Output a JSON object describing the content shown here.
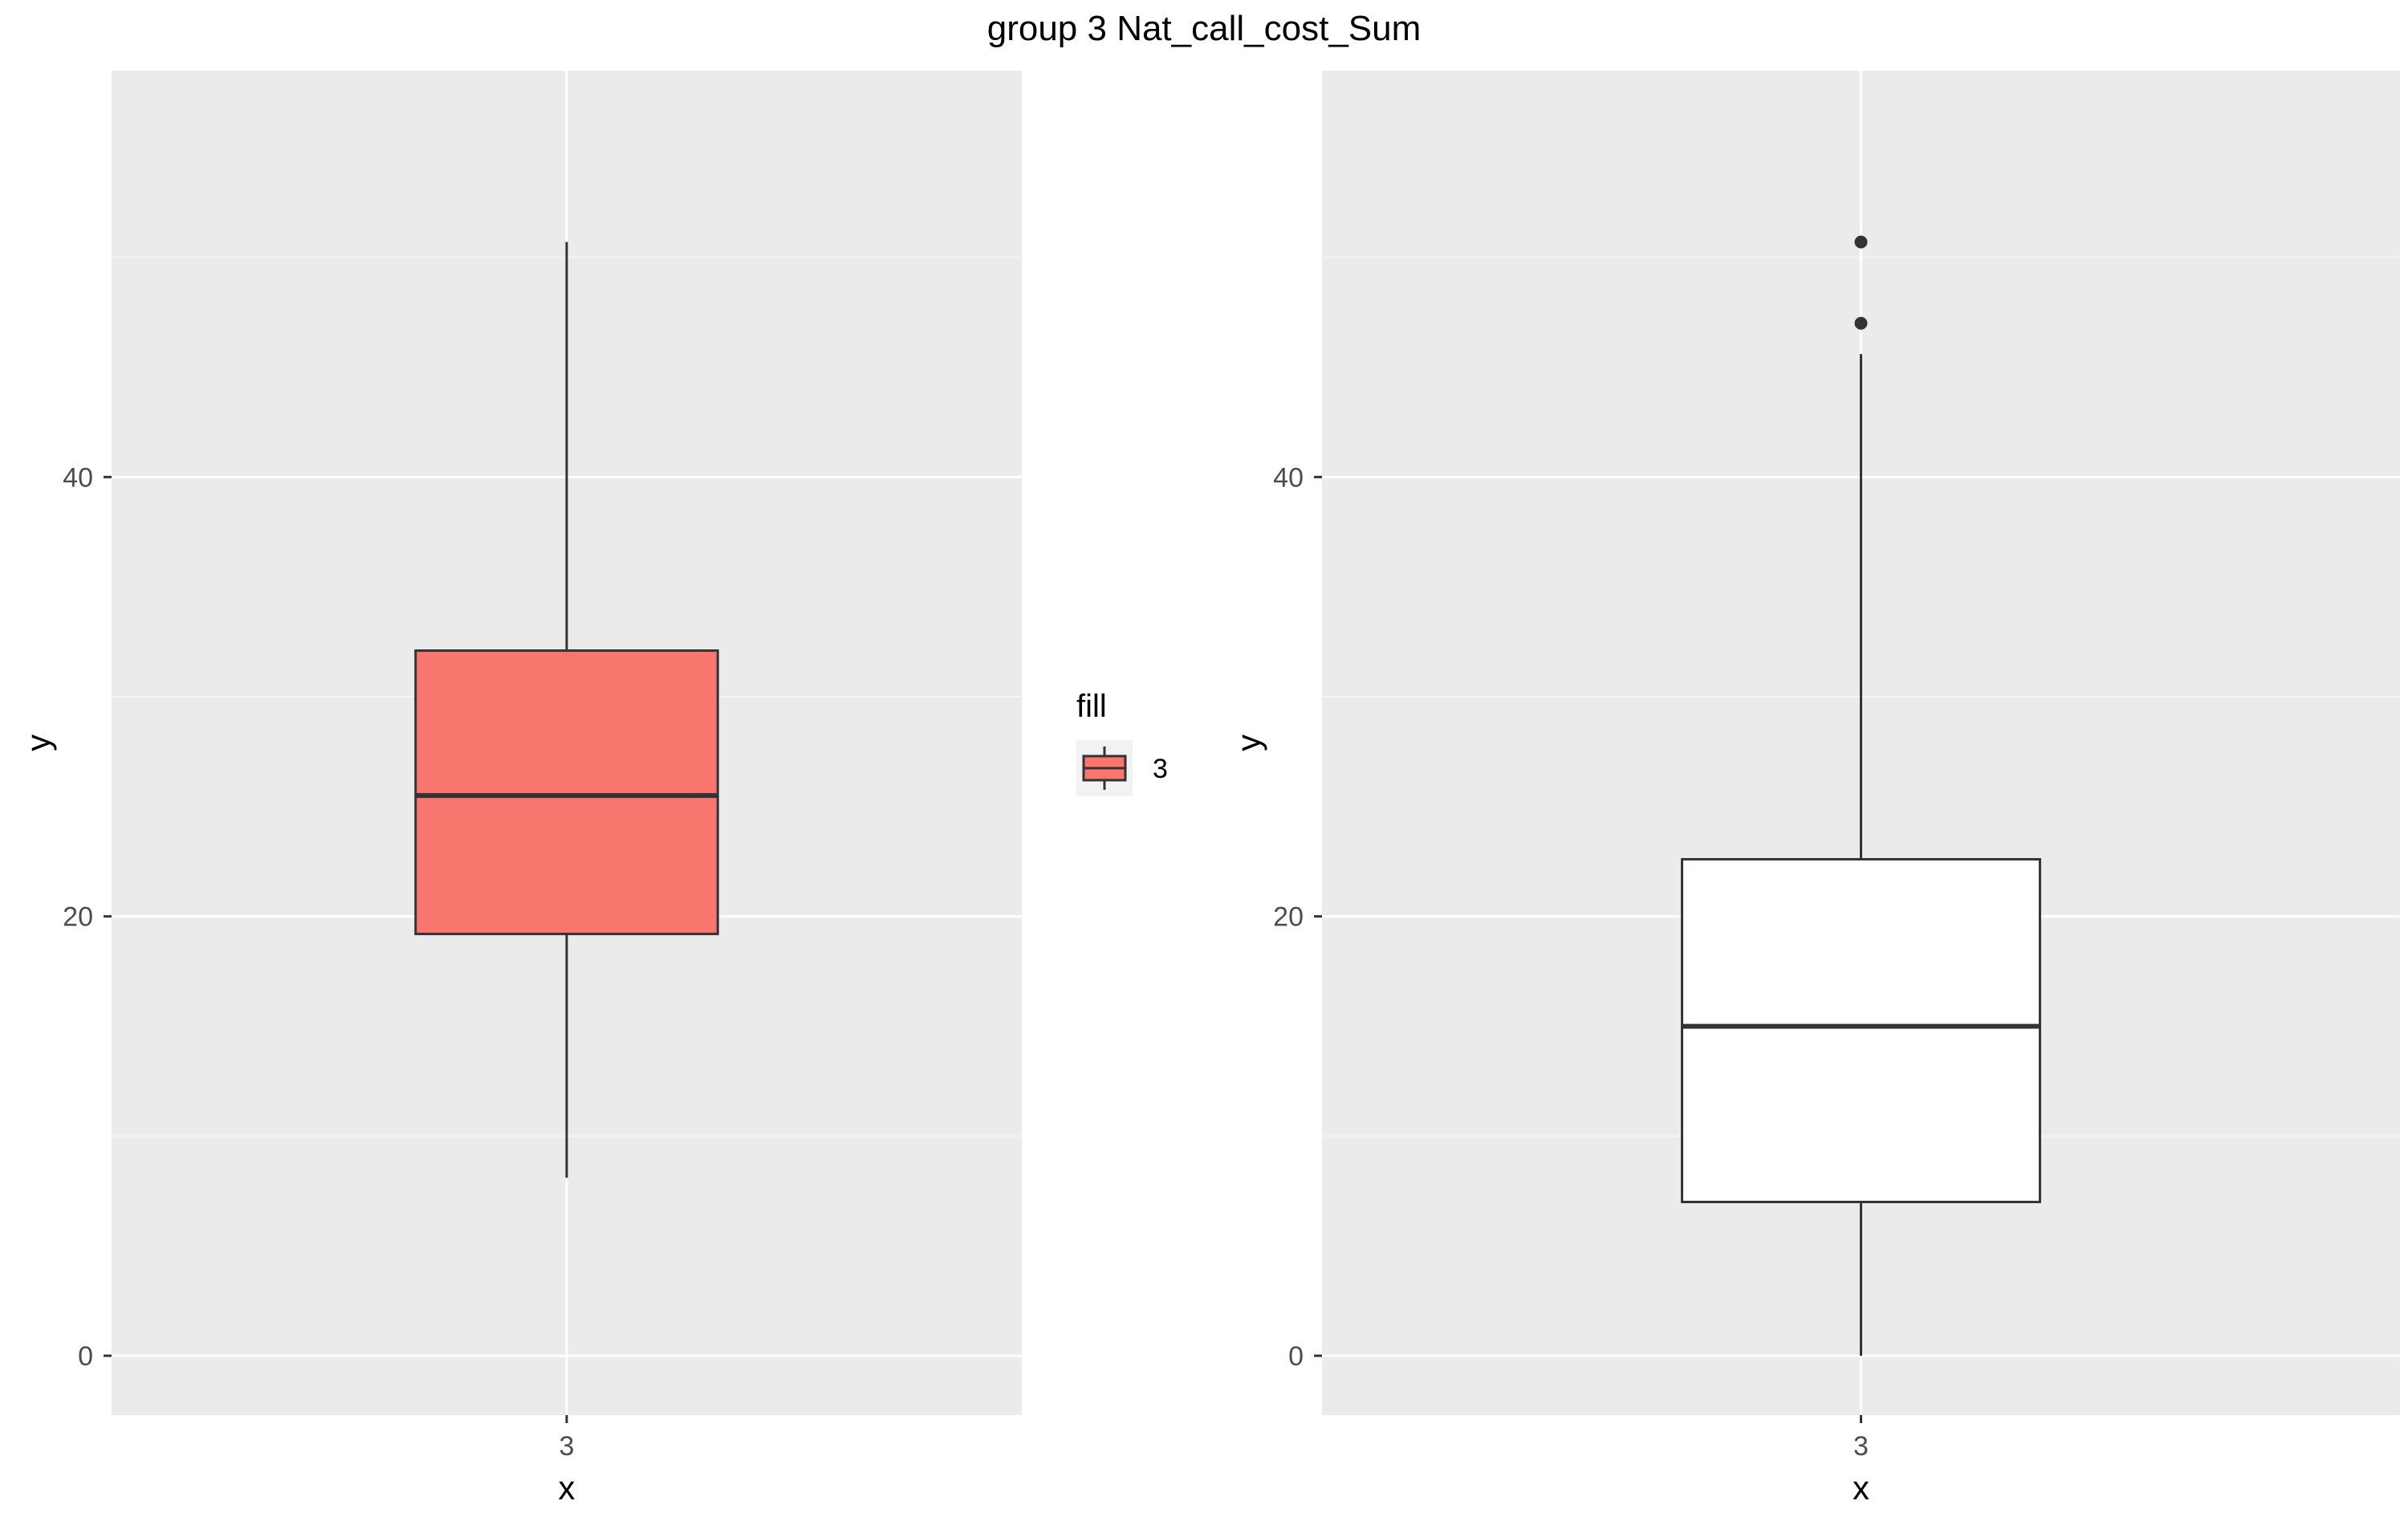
{
  "title": "group 3 Nat_call_cost_Sum",
  "colors": {
    "panel_bg": "#ebebeb",
    "grid_major": "#ffffff",
    "grid_minor": "#f5f5f5",
    "box_fill_left": "#f8766d",
    "box_fill_right": "#ffffff",
    "box_stroke": "#333333",
    "tick_color": "#333333"
  },
  "legend": {
    "title": "fill",
    "items": [
      {
        "label": "3",
        "color": "#f8766d"
      }
    ]
  },
  "chart_data": [
    {
      "type": "boxplot",
      "title": "",
      "xlabel": "x",
      "ylabel": "y",
      "categories": [
        "3"
      ],
      "yticks": [
        0,
        20,
        40
      ],
      "ylim": [
        -2.7,
        58.5
      ],
      "grid": true,
      "fill": "#f8766d",
      "boxes": [
        {
          "category": "3",
          "whisker_low": 8.1,
          "q1": 19.2,
          "median": 25.5,
          "q3": 32.1,
          "whisker_high": 50.7,
          "outliers": []
        }
      ]
    },
    {
      "type": "boxplot",
      "title": "",
      "xlabel": "x",
      "ylabel": "y",
      "categories": [
        "3"
      ],
      "yticks": [
        0,
        20,
        40
      ],
      "ylim": [
        -2.7,
        58.5
      ],
      "grid": true,
      "fill": "#ffffff",
      "boxes": [
        {
          "category": "3",
          "whisker_low": 0,
          "q1": 7.0,
          "median": 15.0,
          "q3": 22.6,
          "whisker_high": 45.6,
          "outliers": [
            47.0,
            50.7
          ]
        }
      ]
    }
  ]
}
